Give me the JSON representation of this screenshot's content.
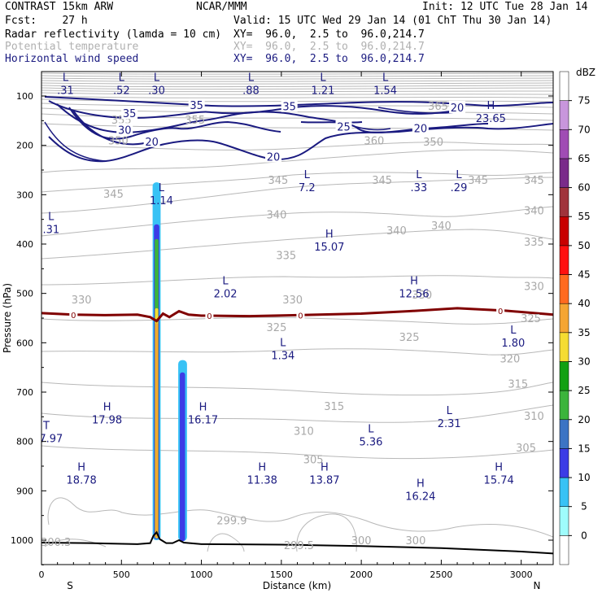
{
  "header": {
    "model": "CONTRAST 15km ARW",
    "org": "NCAR/MMM",
    "init": "Init: 12 UTC Tue 28 Jan 14",
    "fcst": "Fcst:    27 h",
    "valid": "Valid: 15 UTC Wed 29 Jan 14 (01 ChT Thu 30 Jan 14)",
    "field1_name": "Radar reflectivity (lamda = 10 cm)",
    "field1_xy": "XY=  96.0,  2.5 to  96.0,214.7",
    "field2_name": "Potential temperature",
    "field2_xy": "XY=  96.0,  2.5 to  96.0,214.7",
    "field3_name": "Horizontal wind speed",
    "field3_xy": "XY=  96.0,  2.5 to  96.0,214.7"
  },
  "colors": {
    "theta": "#b8b8b8",
    "wind": "#1a1a80",
    "freezing": "#800000",
    "terrain": "#000000"
  },
  "chart_data": {
    "type": "cross-section",
    "xlabel": "Distance (km)",
    "ylabel": "Pressure (hPa)",
    "xlim": [
      0,
      3200
    ],
    "ylim": [
      1050,
      65
    ],
    "xticks": [
      0,
      500,
      1000,
      1500,
      2000,
      2500,
      3000
    ],
    "yticks": [
      100,
      200,
      300,
      400,
      500,
      600,
      700,
      800,
      900,
      1000
    ],
    "direction_left": "S",
    "direction_right": "N",
    "colorbar": {
      "unit": "dBZ",
      "levels": [
        0,
        5,
        10,
        15,
        20,
        25,
        30,
        35,
        40,
        45,
        50,
        55,
        60,
        65,
        70,
        75
      ],
      "colors": [
        "#ffffff",
        "#9ffcfc",
        "#38c2f5",
        "#3c3ce6",
        "#3c74c4",
        "#3cb43c",
        "#12a012",
        "#f5dc32",
        "#f5a532",
        "#ff6a1f",
        "#ff1010",
        "#c80000",
        "#a0343c",
        "#7a2b8a",
        "#a04cb4",
        "#c896dc",
        "#ffffff"
      ]
    },
    "theta_labels": [
      {
        "x": 2480,
        "p": 120,
        "text": "365"
      },
      {
        "x": 500,
        "p": 148,
        "text": "355"
      },
      {
        "x": 960,
        "p": 148,
        "text": "355"
      },
      {
        "x": 2450,
        "p": 192,
        "text": "350"
      },
      {
        "x": 2080,
        "p": 190,
        "text": "360"
      },
      {
        "x": 480,
        "p": 190,
        "text": "350"
      },
      {
        "x": 1480,
        "p": 270,
        "text": "345"
      },
      {
        "x": 2130,
        "p": 270,
        "text": "345"
      },
      {
        "x": 2730,
        "p": 270,
        "text": "345"
      },
      {
        "x": 3080,
        "p": 270,
        "text": "345"
      },
      {
        "x": 450,
        "p": 298,
        "text": "345"
      },
      {
        "x": 1470,
        "p": 340,
        "text": "340"
      },
      {
        "x": 2220,
        "p": 372,
        "text": "340"
      },
      {
        "x": 2500,
        "p": 362,
        "text": "340"
      },
      {
        "x": 3080,
        "p": 332,
        "text": "340"
      },
      {
        "x": 1530,
        "p": 422,
        "text": "335"
      },
      {
        "x": 3080,
        "p": 395,
        "text": "335"
      },
      {
        "x": 250,
        "p": 512,
        "text": "330"
      },
      {
        "x": 1570,
        "p": 512,
        "text": "330"
      },
      {
        "x": 2380,
        "p": 502,
        "text": "330"
      },
      {
        "x": 3080,
        "p": 485,
        "text": "330"
      },
      {
        "x": 1470,
        "p": 568,
        "text": "325"
      },
      {
        "x": 2300,
        "p": 588,
        "text": "325"
      },
      {
        "x": 3060,
        "p": 550,
        "text": "325"
      },
      {
        "x": 2930,
        "p": 632,
        "text": "320"
      },
      {
        "x": 2980,
        "p": 683,
        "text": "315"
      },
      {
        "x": 1830,
        "p": 728,
        "text": "315"
      },
      {
        "x": 1640,
        "p": 778,
        "text": "310"
      },
      {
        "x": 3080,
        "p": 748,
        "text": "310"
      },
      {
        "x": 1700,
        "p": 836,
        "text": "305"
      },
      {
        "x": 3030,
        "p": 812,
        "text": "305"
      },
      {
        "x": 1190,
        "p": 960,
        "text": "299.9"
      },
      {
        "x": 90,
        "p": 1003,
        "text": "300.3"
      },
      {
        "x": 1610,
        "p": 1010,
        "text": "299.5"
      },
      {
        "x": 2000,
        "p": 1000,
        "text": "300"
      },
      {
        "x": 2340,
        "p": 1000,
        "text": "300"
      }
    ],
    "wind_labels": [
      {
        "x": 970,
        "p": 118,
        "text": "35"
      },
      {
        "x": 1550,
        "p": 121,
        "text": "35"
      },
      {
        "x": 2600,
        "p": 123,
        "text": "20"
      },
      {
        "x": 550,
        "p": 135,
        "text": "35"
      },
      {
        "x": 1890,
        "p": 162,
        "text": "25"
      },
      {
        "x": 2370,
        "p": 165,
        "text": "20"
      },
      {
        "x": 520,
        "p": 168,
        "text": "30"
      },
      {
        "x": 690,
        "p": 192,
        "text": "20"
      },
      {
        "x": 1450,
        "p": 223,
        "text": "20"
      }
    ],
    "extrema": [
      {
        "x": 150,
        "p": 73,
        "kind": "L",
        "value": ".31"
      },
      {
        "x": 500,
        "p": 73,
        "kind": "L",
        "value": ".52"
      },
      {
        "x": 720,
        "p": 73,
        "kind": "L",
        "value": ".30"
      },
      {
        "x": 1310,
        "p": 73,
        "kind": "L",
        "value": ".88"
      },
      {
        "x": 1760,
        "p": 73,
        "kind": "L",
        "value": "1.21"
      },
      {
        "x": 2150,
        "p": 73,
        "kind": "L",
        "value": "1.54"
      },
      {
        "x": 2810,
        "p": 130,
        "kind": "H",
        "value": "23.65"
      },
      {
        "x": 1660,
        "p": 270,
        "kind": "L",
        "value": "7.2"
      },
      {
        "x": 2360,
        "p": 270,
        "kind": "L",
        "value": ".33"
      },
      {
        "x": 2610,
        "p": 270,
        "kind": "L",
        "value": ".29"
      },
      {
        "x": 750,
        "p": 296,
        "kind": "L",
        "value": "1.14"
      },
      {
        "x": 60,
        "p": 355,
        "kind": "L",
        "value": ".31"
      },
      {
        "x": 1800,
        "p": 390,
        "kind": "H",
        "value": "15.07"
      },
      {
        "x": 1150,
        "p": 485,
        "kind": "L",
        "value": "2.02"
      },
      {
        "x": 2330,
        "p": 485,
        "kind": "H",
        "value": "12.56"
      },
      {
        "x": 2950,
        "p": 585,
        "kind": "L",
        "value": "1.80"
      },
      {
        "x": 1510,
        "p": 610,
        "kind": "L",
        "value": "1.34"
      },
      {
        "x": 410,
        "p": 740,
        "kind": "H",
        "value": "17.98"
      },
      {
        "x": 1010,
        "p": 740,
        "kind": "H",
        "value": "16.17"
      },
      {
        "x": 2550,
        "p": 748,
        "kind": "L",
        "value": "2.31"
      },
      {
        "x": 60,
        "p": 778,
        "kind": "T",
        "value": "7.97"
      },
      {
        "x": 2060,
        "p": 785,
        "kind": "L",
        "value": "5.36"
      },
      {
        "x": 250,
        "p": 862,
        "kind": "H",
        "value": "18.78"
      },
      {
        "x": 1380,
        "p": 862,
        "kind": "H",
        "value": "11.38"
      },
      {
        "x": 1770,
        "p": 862,
        "kind": "H",
        "value": "13.87"
      },
      {
        "x": 2860,
        "p": 862,
        "kind": "H",
        "value": "15.74"
      },
      {
        "x": 2370,
        "p": 895,
        "kind": "H",
        "value": "16.24"
      }
    ],
    "freezing_label": "0",
    "freezing_line": [
      [
        0,
        540
      ],
      [
        200,
        543
      ],
      [
        400,
        544
      ],
      [
        600,
        543
      ],
      [
        680,
        548
      ],
      [
        720,
        556
      ],
      [
        760,
        541
      ],
      [
        800,
        548
      ],
      [
        860,
        536
      ],
      [
        920,
        543
      ],
      [
        1000,
        545
      ],
      [
        1300,
        546
      ],
      [
        1600,
        544
      ],
      [
        2000,
        541
      ],
      [
        2300,
        536
      ],
      [
        2600,
        530
      ],
      [
        2900,
        535
      ],
      [
        3200,
        543
      ]
    ],
    "terrain": [
      [
        0,
        1005
      ],
      [
        300,
        1006
      ],
      [
        600,
        1008
      ],
      [
        680,
        1006
      ],
      [
        700,
        991
      ],
      [
        720,
        984
      ],
      [
        740,
        998
      ],
      [
        780,
        1006
      ],
      [
        820,
        1006
      ],
      [
        860,
        1000
      ],
      [
        890,
        1005
      ],
      [
        1000,
        1008
      ],
      [
        1500,
        1009
      ],
      [
        2000,
        1012
      ],
      [
        2500,
        1016
      ],
      [
        3000,
        1023
      ],
      [
        3200,
        1027
      ]
    ],
    "reflectivity_cells": [
      {
        "x0": 695,
        "x1": 745,
        "ptop": 275,
        "pbot": 1000,
        "dbz": 8
      },
      {
        "x0": 703,
        "x1": 737,
        "ptop": 360,
        "pbot": 998,
        "dbz": 14
      },
      {
        "x0": 708,
        "x1": 732,
        "ptop": 390,
        "pbot": 996,
        "dbz": 22
      },
      {
        "x0": 710,
        "x1": 730,
        "ptop": 530,
        "pbot": 996,
        "dbz": 32
      },
      {
        "x0": 711,
        "x1": 729,
        "ptop": 560,
        "pbot": 994,
        "dbz": 37
      },
      {
        "x0": 855,
        "x1": 910,
        "ptop": 635,
        "pbot": 1002,
        "dbz": 8
      },
      {
        "x0": 865,
        "x1": 898,
        "ptop": 660,
        "pbot": 1002,
        "dbz": 12
      }
    ]
  }
}
